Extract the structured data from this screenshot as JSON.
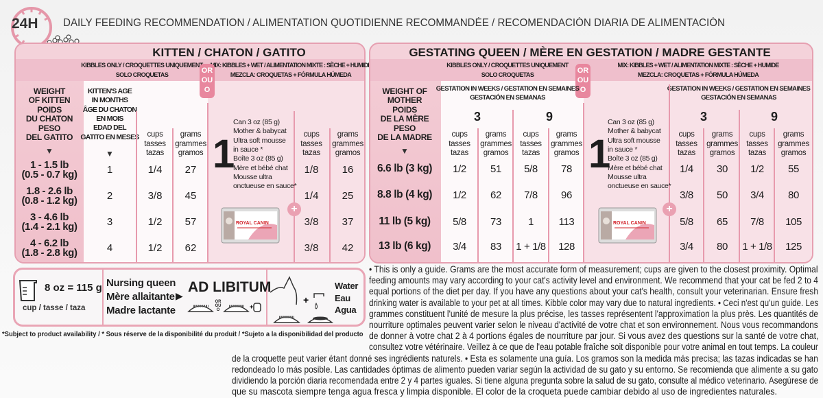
{
  "header": {
    "clock_label": "24H",
    "title": "DAILY FEEDING RECOMMENDATION / ALIMENTATION QUOTIDIENNE RECOMMANDÉE / RECOMENDACIÓN DIARIA DE ALIMENTACIÓN"
  },
  "colors": {
    "panel": "#f4d2da",
    "border": "#e6a0b1",
    "accent": "#e8879e",
    "text": "#1e1e1e"
  },
  "or_badge": [
    "OR",
    "OU",
    "O"
  ],
  "kibbles_header": [
    "KIBBLES ONLY / CROQUETTES UNIQUEMENT",
    "SOLO CROQUETAS"
  ],
  "mix_header": [
    "MIX: KIBBLES + WET / ALIMENTATION MIXTE : SÈCHE + HUMIDE",
    "MEZCLA: CROQUETAS + FÓRMULA HÚMEDA"
  ],
  "cups_header": [
    "cups",
    "tasses",
    "tazas"
  ],
  "grams_header": [
    "grams",
    "grammes",
    "gramos"
  ],
  "wet_number": "1",
  "wet_product": [
    "Can 3 oz (85 g)",
    "Mother & babycat",
    "Ultra soft mousse",
    "in sauce *",
    "Boîte 3 oz (85 g)",
    "Mère et bébé chat",
    "Mousse ultra",
    "onctueuse en sauce*"
  ],
  "can_brand": "ROYAL CANIN",
  "kitten": {
    "title": "KITTEN / CHATON / GATITO",
    "weight_header": [
      "WEIGHT",
      "OF KITTEN",
      "POIDS",
      "DU CHATON",
      "PESO",
      "DEL GATITO"
    ],
    "age_header": [
      "KITTEN'S AGE",
      "IN MONTHS",
      "ÂGE DU CHATON",
      "EN MOIS",
      "EDAD DEL",
      "GATITO EN MESES"
    ],
    "rows": [
      {
        "weight": [
          "1 - 1.5 lb",
          "(0.5 - 0.7 kg)"
        ],
        "age": "1",
        "kibbles_cups": "1/4",
        "kibbles_grams": "27",
        "mix_cups": "1/8",
        "mix_grams": "16"
      },
      {
        "weight": [
          "1.8 - 2.6 lb",
          "(0.8 - 1.2 kg)"
        ],
        "age": "2",
        "kibbles_cups": "3/8",
        "kibbles_grams": "45",
        "mix_cups": "1/4",
        "mix_grams": "25"
      },
      {
        "weight": [
          "3 - 4.6 lb",
          "(1.4 - 2.1 kg)"
        ],
        "age": "3",
        "kibbles_cups": "1/2",
        "kibbles_grams": "57",
        "mix_cups": "3/8",
        "mix_grams": "37"
      },
      {
        "weight": [
          "4 - 6.2 lb",
          "(1.8 - 2.8 kg)"
        ],
        "age": "4",
        "kibbles_cups": "1/2",
        "kibbles_grams": "62",
        "mix_cups": "3/8",
        "mix_grams": "42"
      }
    ]
  },
  "queen": {
    "title": "GESTATING QUEEN / MÈRE EN GESTATION / MADRE GESTANTE",
    "weight_header": [
      "WEIGHT OF",
      "MOTHER",
      "POIDS",
      "DE LA MÈRE",
      "PESO",
      "DE LA MADRE"
    ],
    "gestation_header": [
      "GESTATION IN WEEKS / GESTATION EN SEMAINES",
      "GESTACIÓN EN SEMANAS"
    ],
    "weeks": [
      "3",
      "9"
    ],
    "rows": [
      {
        "weight": "6.6 lb (3 kg)",
        "kibbles": [
          "1/2",
          "51",
          "5/8",
          "78"
        ],
        "mix": [
          "1/4",
          "30",
          "1/2",
          "55"
        ]
      },
      {
        "weight": "8.8 lb (4 kg)",
        "kibbles": [
          "1/2",
          "62",
          "7/8",
          "96"
        ],
        "mix": [
          "3/8",
          "50",
          "3/4",
          "80"
        ]
      },
      {
        "weight": "11 lb (5 kg)",
        "kibbles": [
          "5/8",
          "73",
          "1",
          "113"
        ],
        "mix": [
          "5/8",
          "65",
          "7/8",
          "105"
        ]
      },
      {
        "weight": "13 lb (6 kg)",
        "kibbles": [
          "3/4",
          "83",
          "1 + 1/8",
          "128"
        ],
        "mix": [
          "3/4",
          "80",
          "1 + 1/8",
          "125"
        ]
      }
    ]
  },
  "bottom": {
    "cup_measure": "8 oz = 115 g",
    "cup_label": "cup / tasse / taza",
    "nursing": [
      "Nursing queen",
      "Mère allaitante",
      "Madre lactante"
    ],
    "ad_libitum": "AD LIBITUM",
    "small_or": [
      "OR",
      "OU",
      "O"
    ],
    "water": [
      "Water",
      "Eau",
      "Agua"
    ]
  },
  "footnote": "*Subject to product availability / * Sous réserve de la disponibilité du produit / *Sujeto a la disponibilidad del producto",
  "paragraph_lines": [
    "• This is only a guide. Grams are the most accurate form of measurement; cups are given to the closest proximity. Optimal",
    "feeding amounts may vary according to your cat's activity level and environment. We recommend that your cat be fed 2 to 4",
    "equal portions of the diet per day. If you have any questions about your cat's health, consult your veterinarian. Ensure fresh",
    "drinking water is available to your pet at all times. Kibble color may vary due to natural ingredients. • Ceci n'est qu'un guide. Les",
    "grammes constituent l'unité de mesure la plus précise, les tasses représentent l'approximation la plus près. Les quantités de",
    "nourriture optimales peuvent varier selon le niveau d'activité de votre chat et son environnement. Nous vous recommandons",
    "de donner à votre chat 2 à 4 portions égales de nourriture par jour. Si vous avez des questions sur la santé de votre chat,",
    "consultez votre vétérinaire. Veillez à ce que de l'eau potable fraîche soit disponible pour votre animal en tout temps. La couleur",
    "de la croquette peut varier étant donné ses ingrédients naturels. • Esta es solamente una guía. Los gramos son la medida más precisa; las tazas indicadas se han",
    "redondeado lo más posible. Las cantidades óptimas de alimento pueden variar según la actividad de su gato y su entorno. Se recomienda que alimente a su gato",
    "dividiendo la porción diaria recomendada entre 2 y 4 partes iguales. Si tiene alguna pregunta sobre la salud de su gato, consulte al médico veterinario. Asegúrese de",
    "que su mascota siempre tenga agua fresca y limpia disponible. El color de la croqueta puede cambiar debido al uso de ingredientes naturales."
  ]
}
